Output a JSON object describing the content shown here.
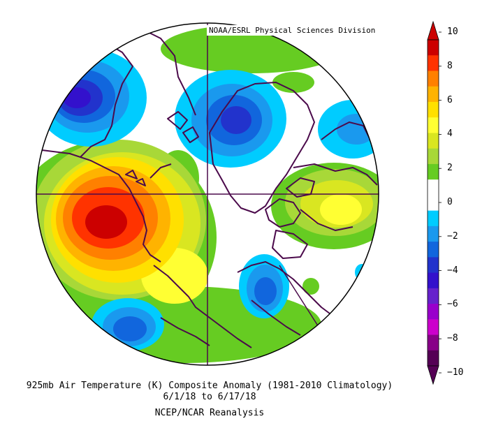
{
  "credit": "NOAA/ESRL Physical Sciences Division",
  "title": "925mb Air Temperature (K) Composite Anomaly (1981-2010 Climatology)",
  "dates": "6/1/18   to 6/17/18",
  "source": "NCEP/NCAR Reanalysis",
  "colorbar": {
    "ticks": [
      "10",
      "8",
      "6",
      "4",
      "2",
      "0",
      "−2",
      "−4",
      "−6",
      "−8",
      "−10"
    ],
    "colors": [
      "#cc0000",
      "#ff3300",
      "#ff8000",
      "#ffb300",
      "#ffe000",
      "#ffff33",
      "#d9e621",
      "#a8d838",
      "#66cc22",
      "#ffffff",
      "#ffffff",
      "#00ccff",
      "#1a99ee",
      "#1166dd",
      "#2233cc",
      "#3311cc",
      "#6622cc",
      "#9900cc",
      "#cc00cc",
      "#880088",
      "#550055"
    ]
  },
  "anomaly_features": [
    {
      "name": "warm-anomaly-west",
      "peak_k": 10
    },
    {
      "name": "warm-anomaly-east",
      "peak_k": 4
    },
    {
      "name": "cold-anomaly-northwest",
      "peak_k": -6
    },
    {
      "name": "cold-anomaly-north",
      "peak_k": -4
    },
    {
      "name": "cold-anomaly-south",
      "peak_k": -4
    },
    {
      "name": "cold-anomaly-southwest",
      "peak_k": -4
    },
    {
      "name": "cold-anomaly-northeast",
      "peak_k": -2
    }
  ]
}
